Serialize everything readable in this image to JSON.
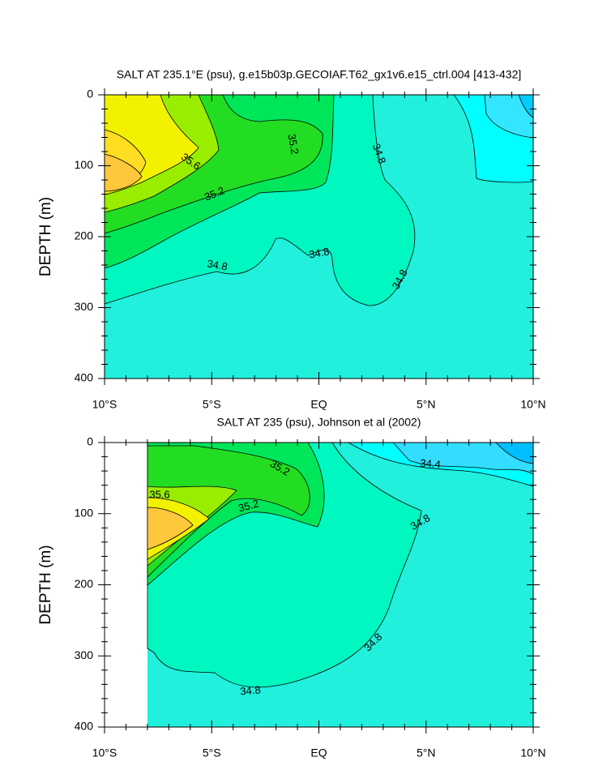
{
  "chart_data": [
    {
      "type": "contour",
      "title": "SALT AT 235.1°E (psu), g.e15b03p.GECOIAF.T62_gx1v6.e15_ctrl.004 [413-432]",
      "ylabel": "DEPTH (m)",
      "xlim": [
        -10,
        10
      ],
      "xticks": [
        {
          "value": -10,
          "label": "10°S"
        },
        {
          "value": -5,
          "label": "5°S"
        },
        {
          "value": 0,
          "label": "EQ"
        },
        {
          "value": 5,
          "label": "5°N"
        },
        {
          "value": 10,
          "label": "10°N"
        }
      ],
      "ylim": [
        0,
        400
      ],
      "y_reversed": true,
      "yticks": [
        0,
        100,
        200,
        300,
        400
      ],
      "contour_labels": [
        35.6,
        35.2,
        34.8,
        35.2,
        34.8,
        34.8,
        34.8
      ]
    },
    {
      "type": "contour",
      "title": "SALT AT 235 (psu), Johnson et al (2002)",
      "ylabel": "DEPTH (m)",
      "xlim": [
        -10,
        10
      ],
      "xticks": [
        {
          "value": -10,
          "label": "10°S"
        },
        {
          "value": -5,
          "label": "5°S"
        },
        {
          "value": 0,
          "label": "EQ"
        },
        {
          "value": 5,
          "label": "5°N"
        },
        {
          "value": 10,
          "label": "10°N"
        }
      ],
      "ylim": [
        0,
        400
      ],
      "y_reversed": true,
      "yticks": [
        0,
        100,
        200,
        300,
        400
      ],
      "contour_labels": [
        34.4,
        35.2,
        35.6,
        35.2,
        34.8,
        34.8,
        34.8
      ]
    }
  ]
}
